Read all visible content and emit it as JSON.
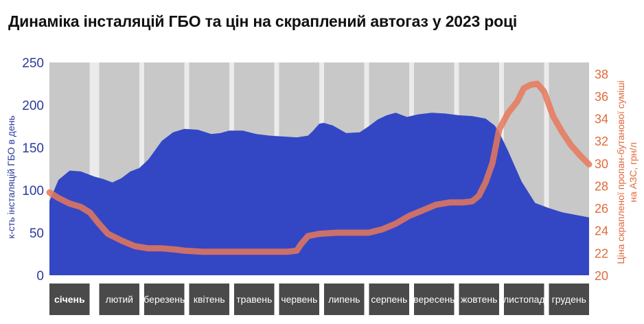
{
  "title": "Динаміка інсталяцій ГБО та цін на скраплений автогаз у 2023 році",
  "colors": {
    "area": "#3347c4",
    "line": "#e8785a",
    "left_axis": "#2b3a9e",
    "right_axis": "#e06a3c",
    "month_bg": "#c8c8c8",
    "month_label_bg": "#4a4a4a",
    "plot_bg": "#ebebeb"
  },
  "chart_data": {
    "type": "area+line",
    "title": "Динаміка інсталяцій ГБО та цін на скраплений автогаз у 2023 році",
    "categories": [
      "січень",
      "лютий",
      "березень",
      "квітень",
      "травень",
      "червень",
      "липень",
      "серпень",
      "вересень",
      "жовтень",
      "листопад",
      "грудень"
    ],
    "x_range": [
      0,
      12
    ],
    "y_left": {
      "label": "к-сть інсталяцій ГБО в день",
      "range": [
        0,
        250
      ],
      "ticks": [
        0,
        50,
        100,
        150,
        200,
        250
      ]
    },
    "y_right": {
      "label_line1": "Ціна скрапленої пропан-бутанової суміші",
      "label_line2": "на АЗС, грн/л",
      "range": [
        20,
        39
      ],
      "ticks": [
        20,
        22,
        24,
        26,
        28,
        30,
        32,
        34,
        36,
        38
      ]
    },
    "series": [
      {
        "kind": "area",
        "axis": "left",
        "x": [
          0,
          0.2,
          0.45,
          0.7,
          1.0,
          1.2,
          1.4,
          1.6,
          1.8,
          2.0,
          2.2,
          2.5,
          2.75,
          3.0,
          3.3,
          3.6,
          3.8,
          4.0,
          4.3,
          4.6,
          4.9,
          5.2,
          5.5,
          5.75,
          5.85,
          6.0,
          6.1,
          6.3,
          6.6,
          6.9,
          7.1,
          7.3,
          7.5,
          7.7,
          7.95,
          8.2,
          8.5,
          8.8,
          9.1,
          9.4,
          9.7,
          9.9,
          10.0,
          10.2,
          10.5,
          10.8,
          11.1,
          11.4,
          11.7,
          12.0
        ],
        "values": [
          87,
          112,
          123,
          122,
          116,
          113,
          109,
          114,
          122,
          126,
          136,
          158,
          168,
          172,
          171,
          166,
          167,
          170,
          170,
          166,
          164,
          163,
          162,
          164,
          169,
          178,
          179,
          176,
          167,
          168,
          175,
          183,
          188,
          191,
          186,
          189,
          191,
          190,
          188,
          187,
          184,
          176,
          168,
          146,
          110,
          85,
          79,
          74,
          71,
          68
        ]
      },
      {
        "kind": "line",
        "axis": "right",
        "x": [
          0,
          0.2,
          0.45,
          0.7,
          0.9,
          1.1,
          1.3,
          1.6,
          1.9,
          2.2,
          2.5,
          2.8,
          3.0,
          3.4,
          3.8,
          4.2,
          4.6,
          5.0,
          5.3,
          5.5,
          5.6,
          5.75,
          6.0,
          6.4,
          6.8,
          7.1,
          7.4,
          7.7,
          8.0,
          8.3,
          8.6,
          8.9,
          9.2,
          9.4,
          9.55,
          9.7,
          9.85,
          10.0,
          10.2,
          10.4,
          10.55,
          10.7,
          10.85,
          11.0,
          11.2,
          11.4,
          11.6,
          11.8,
          12.0
        ],
        "values": [
          27.4,
          26.9,
          26.4,
          26.1,
          25.6,
          24.6,
          23.7,
          23.1,
          22.6,
          22.4,
          22.4,
          22.3,
          22.2,
          22.1,
          22.1,
          22.1,
          22.1,
          22.1,
          22.1,
          22.2,
          22.8,
          23.5,
          23.7,
          23.8,
          23.8,
          23.8,
          24.1,
          24.6,
          25.3,
          25.8,
          26.3,
          26.5,
          26.5,
          26.6,
          27.1,
          28.3,
          30.0,
          33.0,
          34.5,
          35.5,
          36.7,
          37.0,
          37.1,
          36.4,
          34.2,
          32.8,
          31.6,
          30.7,
          29.9
        ]
      }
    ],
    "grid": false,
    "legend": "none"
  }
}
